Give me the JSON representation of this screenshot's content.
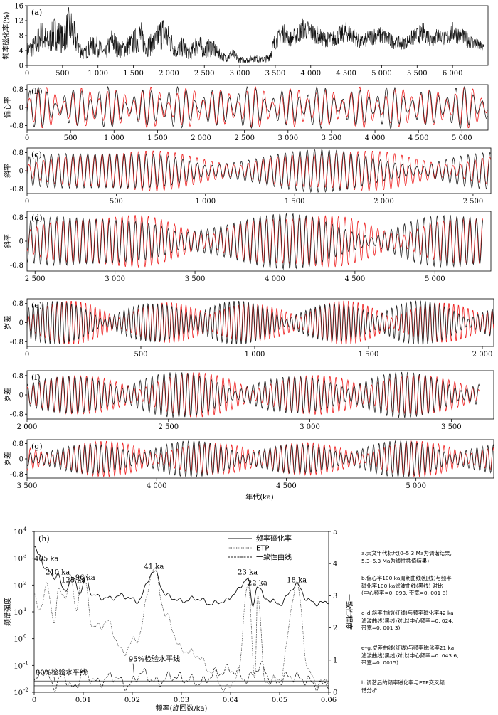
{
  "colors": {
    "filtered": "#222222",
    "target": "#ee2222",
    "axis": "#000000",
    "mag": "#111111"
  },
  "chart_data": [
    {
      "panel": "(a)",
      "type": "line",
      "ylabel": "频率磁化率(%)",
      "xlim": [
        0,
        6500
      ],
      "ylim": [
        0,
        16
      ],
      "x_ticks": [
        "0",
        "500",
        "1 000",
        "1 500",
        "2 000",
        "2 500",
        "3 000",
        "3 500",
        "4 000",
        "4 500",
        "5 000",
        "5 500",
        "6 000"
      ],
      "x_tick_values": [
        0,
        500,
        1000,
        1500,
        2000,
        2500,
        3000,
        3500,
        4000,
        4500,
        5000,
        5500,
        6000
      ],
      "y_ticks": [
        "0",
        "4",
        "8",
        "12",
        "16"
      ],
      "y_tick_values": [
        0,
        4,
        8,
        12,
        16
      ],
      "series": [
        {
          "x": [
            0,
            100,
            200,
            300,
            400,
            500,
            600,
            700,
            800,
            900,
            1000,
            1100,
            1200,
            1300,
            1400,
            1500,
            1600,
            1700,
            1800,
            1900,
            2000,
            2100,
            2200,
            2300,
            2400,
            2500,
            2600,
            2700,
            2800,
            2900,
            3000,
            3100,
            3200,
            3300,
            3400,
            3500,
            3600,
            3700,
            3800,
            3900,
            4000,
            4100,
            4200,
            4300,
            4400,
            4500,
            4600,
            4700,
            4800,
            4900,
            5000,
            5100,
            5200,
            5300,
            5400,
            5500,
            5600,
            5700,
            5800,
            5900,
            6000,
            6100,
            6200,
            6300,
            6400
          ],
          "y": [
            4,
            5,
            8,
            6,
            9,
            7,
            11,
            6,
            3,
            5,
            5,
            3,
            7,
            4,
            5,
            6,
            8,
            5,
            6,
            9,
            7,
            4,
            5,
            3,
            6,
            4,
            5,
            3,
            2,
            3,
            1.5,
            1.5,
            2,
            1.5,
            2,
            6,
            9,
            7,
            8,
            10,
            9,
            8,
            7,
            7,
            8,
            9,
            8,
            6,
            7,
            8,
            8,
            7,
            6,
            6,
            7,
            8,
            9,
            7,
            8,
            7,
            9,
            8,
            7,
            6,
            5
          ]
        }
      ]
    },
    {
      "panel": "(b)",
      "type": "line",
      "ylabel": "偏心率",
      "xlim": [
        0,
        5300
      ],
      "ylim": [
        -1,
        1
      ],
      "x_ticks": [
        "0",
        "500",
        "1 000",
        "1 500",
        "2 000",
        "2 500",
        "3 000",
        "3 500",
        "4 000",
        "4 500",
        "5 000"
      ],
      "x_tick_values": [
        0,
        500,
        1000,
        1500,
        2000,
        2500,
        3000,
        3500,
        4000,
        4500,
        5000
      ],
      "y_ticks": [
        "0.8",
        "0",
        "-0.8"
      ],
      "y_tick_values": [
        0.8,
        0,
        -0.8
      ],
      "period_ka": 100,
      "amp_mod_ka": 405,
      "x_range": [
        0,
        5300
      ]
    },
    {
      "panel": "(c)",
      "type": "line",
      "ylabel": "斜率",
      "xlim": [
        0,
        2600
      ],
      "ylim": [
        -1,
        1
      ],
      "x_ticks": [
        "0",
        "500",
        "1 000",
        "1 500",
        "2 000",
        "2 500"
      ],
      "x_tick_values": [
        0,
        500,
        1000,
        1500,
        2000,
        2500
      ],
      "y_ticks": [
        "0.8",
        "0",
        "-0.8"
      ],
      "y_tick_values": [
        0.8,
        0,
        -0.8
      ],
      "period_ka": 41,
      "amp_mod_ka": 1200,
      "x_range": [
        0,
        2600
      ]
    },
    {
      "panel": "(d)",
      "type": "line",
      "ylabel": "斜率",
      "xlim": [
        2450,
        5350
      ],
      "ylim": [
        -1,
        1
      ],
      "x_ticks": [
        "2 500",
        "3 000",
        "3 500",
        "4 000",
        "4 500",
        "5 000"
      ],
      "x_tick_values": [
        2500,
        3000,
        3500,
        4000,
        4500,
        5000
      ],
      "y_ticks": [
        "0.8",
        "0",
        "-0.8"
      ],
      "y_tick_values": [
        0.8,
        0,
        -0.8
      ],
      "period_ka": 41,
      "amp_mod_ka": 1200,
      "x_range": [
        2450,
        5300
      ]
    },
    {
      "panel": "(e)",
      "type": "line",
      "ylabel": "岁差",
      "xlim": [
        0,
        2050
      ],
      "ylim": [
        -1,
        1
      ],
      "x_ticks": [
        "0",
        "500",
        "1 000",
        "1 500",
        "2 000"
      ],
      "x_tick_values": [
        0,
        500,
        1000,
        1500,
        2000
      ],
      "y_ticks": [
        "0.8",
        "0",
        "-0.8"
      ],
      "y_tick_values": [
        0.8,
        0,
        -0.8
      ],
      "period_ka": 21,
      "amp_mod_ka": 400,
      "x_range": [
        0,
        2050
      ]
    },
    {
      "panel": "(f)",
      "type": "line",
      "ylabel": "岁差",
      "xlim": [
        2000,
        3650
      ],
      "ylim": [
        -1,
        1
      ],
      "x_ticks": [
        "2 000",
        "2 500",
        "3 000",
        "3 500"
      ],
      "x_tick_values": [
        2000,
        2500,
        3000,
        3500
      ],
      "y_ticks": [
        "0.8",
        "0",
        "-0.8"
      ],
      "y_tick_values": [
        0.8,
        0,
        -0.8
      ],
      "period_ka": 21,
      "amp_mod_ka": 400,
      "x_range": [
        2000,
        3600
      ]
    },
    {
      "panel": "(g)",
      "type": "line",
      "ylabel": "岁差",
      "xlabel": "年代(ka)",
      "xlim": [
        3500,
        5300
      ],
      "ylim": [
        -1,
        1
      ],
      "x_ticks": [
        "3 500",
        "4 000",
        "4 500",
        "5 000"
      ],
      "x_tick_values": [
        3500,
        4000,
        4500,
        5000
      ],
      "y_ticks": [
        "0.8",
        "0",
        "-0.8"
      ],
      "y_tick_values": [
        0.8,
        0,
        -0.8
      ],
      "period_ka": 21,
      "amp_mod_ka": 400,
      "x_range": [
        3500,
        5300
      ]
    },
    {
      "panel": "(h)",
      "type": "line",
      "log_y": true,
      "xlabel": "频率(旋回数/ka)",
      "ylabel": "频谱强度",
      "y2label": "一致性程度",
      "xlim": [
        0,
        0.06
      ],
      "ylim_exp": [
        -2,
        4
      ],
      "y2lim": [
        0,
        5
      ],
      "x_ticks": [
        "0",
        "0.01",
        "0.02",
        "0.03",
        "0.04",
        "0.05",
        "0.06"
      ],
      "x_tick_values": [
        0,
        0.01,
        0.02,
        0.03,
        0.04,
        0.05,
        0.06
      ],
      "y_ticks": [
        "10",
        "10",
        "10",
        "10",
        "10",
        "10",
        "10"
      ],
      "y_tick_exps": [
        "-2",
        "-1",
        "0",
        "1",
        "2",
        "3",
        "4"
      ],
      "y2_ticks": [
        "0",
        "1",
        "2",
        "3",
        "4",
        "5"
      ],
      "legend": [
        "频率磁化率",
        "ETP",
        "一致性曲线"
      ],
      "peak_labels": [
        {
          "text": "405 ka",
          "x": 0.0025,
          "logy": 2.9
        },
        {
          "text": "210 ka",
          "x": 0.0048,
          "logy": 2.4
        },
        {
          "text": "125 ka",
          "x": 0.008,
          "logy": 2.1
        },
        {
          "text": "96 ka",
          "x": 0.0104,
          "logy": 2.2
        },
        {
          "text": "41 ka",
          "x": 0.0244,
          "logy": 2.6
        },
        {
          "text": "23 ka",
          "x": 0.0435,
          "logy": 2.4
        },
        {
          "text": "22 ka",
          "x": 0.0455,
          "logy": 2.0
        },
        {
          "text": "18 ka",
          "x": 0.0535,
          "logy": 2.1
        }
      ],
      "sig_labels": [
        {
          "text": "80%检验水平线",
          "x": 0.0055,
          "logy": -1.35
        },
        {
          "text": "95%检验水平线",
          "x": 0.0245,
          "logy": -0.85
        }
      ],
      "mag_series": {
        "x": [
          0,
          0.001,
          0.0025,
          0.004,
          0.0048,
          0.006,
          0.008,
          0.0095,
          0.0104,
          0.012,
          0.015,
          0.018,
          0.021,
          0.0244,
          0.027,
          0.03,
          0.033,
          0.036,
          0.039,
          0.0415,
          0.0435,
          0.0445,
          0.0455,
          0.047,
          0.05,
          0.0535,
          0.056,
          0.058,
          0.06
        ],
        "logy": [
          3.4,
          3.1,
          2.6,
          2.3,
          2.4,
          1.8,
          2.2,
          1.7,
          2.3,
          1.6,
          1.5,
          1.6,
          1.4,
          2.5,
          1.6,
          1.4,
          1.5,
          1.3,
          1.4,
          1.8,
          2.3,
          1.2,
          2.0,
          1.5,
          1.3,
          2.0,
          1.4,
          1.3,
          1.4
        ]
      },
      "etp_series": {
        "x": [
          0,
          0.001,
          0.0025,
          0.004,
          0.005,
          0.006,
          0.0075,
          0.0085,
          0.0095,
          0.0104,
          0.012,
          0.015,
          0.018,
          0.021,
          0.0244,
          0.027,
          0.03,
          0.033,
          0.036,
          0.039,
          0.0415,
          0.0435,
          0.045,
          0.0455,
          0.047,
          0.05,
          0.0535,
          0.056,
          0.058,
          0.06
        ],
        "logy": [
          1.6,
          1.0,
          2.0,
          0.7,
          1.8,
          1.5,
          2.3,
          1.0,
          2.2,
          2.0,
          0.4,
          0.6,
          -0.5,
          0.0,
          2.6,
          0.8,
          -0.4,
          -0.6,
          -1.2,
          -1.9,
          -1.4,
          2.1,
          -1.5,
          1.8,
          -1.6,
          -1.5,
          2.0,
          -1.3,
          -1.7,
          -1.5
        ]
      },
      "coh_series": {
        "x": [
          0,
          0.002,
          0.004,
          0.006,
          0.008,
          0.01,
          0.013,
          0.016,
          0.019,
          0.022,
          0.025,
          0.028,
          0.031,
          0.034,
          0.037,
          0.04,
          0.0435,
          0.046,
          0.049,
          0.052,
          0.055,
          0.058,
          0.06
        ],
        "y2": [
          0.3,
          0.7,
          0.2,
          0.5,
          0.1,
          0.6,
          0.3,
          0.5,
          0.2,
          0.6,
          0.3,
          0.5,
          0.4,
          0.3,
          0.6,
          0.7,
          0.4,
          0.8,
          0.3,
          0.5,
          0.4,
          0.2,
          0.3
        ]
      },
      "sig80_y2": 0.2,
      "sig95_y2": 0.35
    }
  ],
  "notes": [
    "a.天文年代标尺(0–5.3 Ma为调谐结果,\n5.3–6.3 Ma为线性插值结果)",
    "b.偏心率100 ka周期曲线(红线)与频率\n磁化率100 ka滤波曲线(黑线) 对比\n(中心频率=0. 093, 带宽=0. 001 8)",
    "c–d.斜率曲线(红线)与频率磁化率42 ka\n滤波曲线(黑线)对比(中心频率=0. 024,\n带宽=0. 001 3)",
    "e–g.岁差曲线(红线)与频率磁化率21 ka\n滤波曲线(黑线)对比(中心频率=0. 043 6,\n带宽=0. 0015)",
    "h.调谐后的频率磁化率与ETP交叉频\n谱分析"
  ]
}
